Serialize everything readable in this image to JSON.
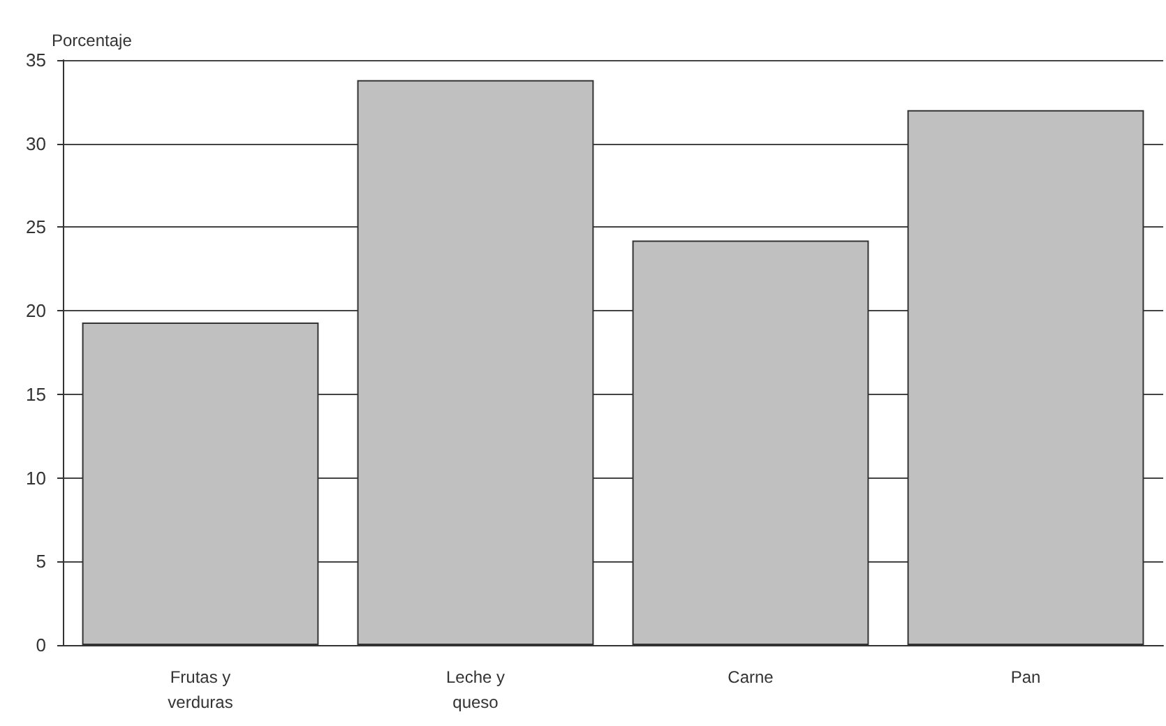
{
  "chart_data": {
    "type": "bar",
    "ylabel": "Porcentaje",
    "categories": [
      "Frutas y\nverduras",
      "Leche y\nqueso",
      "Carne",
      "Pan"
    ],
    "values": [
      19.3,
      33.8,
      24.2,
      32.0
    ],
    "color": "#c0c0c0",
    "ylim": [
      0,
      35
    ],
    "yticks": [
      0,
      5,
      10,
      15,
      20,
      25,
      30,
      35
    ],
    "grid": "y"
  }
}
